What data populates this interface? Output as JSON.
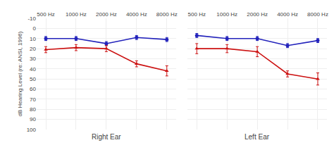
{
  "chart_data": [
    {
      "type": "line",
      "categories": [
        "500 Hz",
        "1000 Hz",
        "2000 Hz",
        "4000 Hz",
        "8000 Hz"
      ],
      "series": [
        {
          "color": "#2222bb",
          "marker": "circle",
          "values": [
            10,
            10,
            15,
            9,
            11
          ],
          "errors": [
            2,
            2,
            2,
            2,
            2
          ]
        },
        {
          "color": "#cc1111",
          "marker": "triangle-up",
          "values": [
            21,
            19,
            20,
            35,
            42
          ],
          "errors": [
            3,
            3,
            3,
            3,
            5
          ]
        }
      ],
      "xlabel": "Right Ear",
      "ylabel": "dB Hearing Level (re: ANSI, 1996)",
      "ylim": [
        100,
        -10
      ],
      "yticks": [
        -10,
        0,
        10,
        20,
        30,
        40,
        50,
        60,
        70,
        80,
        90,
        100
      ],
      "grid": true
    },
    {
      "type": "line",
      "categories": [
        "500 Hz",
        "1000 Hz",
        "2000 Hz",
        "4000 Hz",
        "8000 Hz"
      ],
      "series": [
        {
          "color": "#2222bb",
          "marker": "circle",
          "values": [
            7,
            10,
            10,
            17,
            12
          ],
          "errors": [
            2,
            2,
            2,
            2,
            2
          ]
        },
        {
          "color": "#cc1111",
          "marker": "triangle-up",
          "values": [
            20,
            20,
            23,
            45,
            50
          ],
          "errors": [
            5,
            4,
            5,
            3,
            6
          ]
        }
      ],
      "xlabel": "Left Ear",
      "ylim": [
        100,
        -10
      ],
      "yticks": [
        -10,
        0,
        10,
        20,
        30,
        40,
        50,
        60,
        70,
        80,
        90,
        100
      ],
      "grid": true,
      "tick_labels": "x"
    }
  ]
}
